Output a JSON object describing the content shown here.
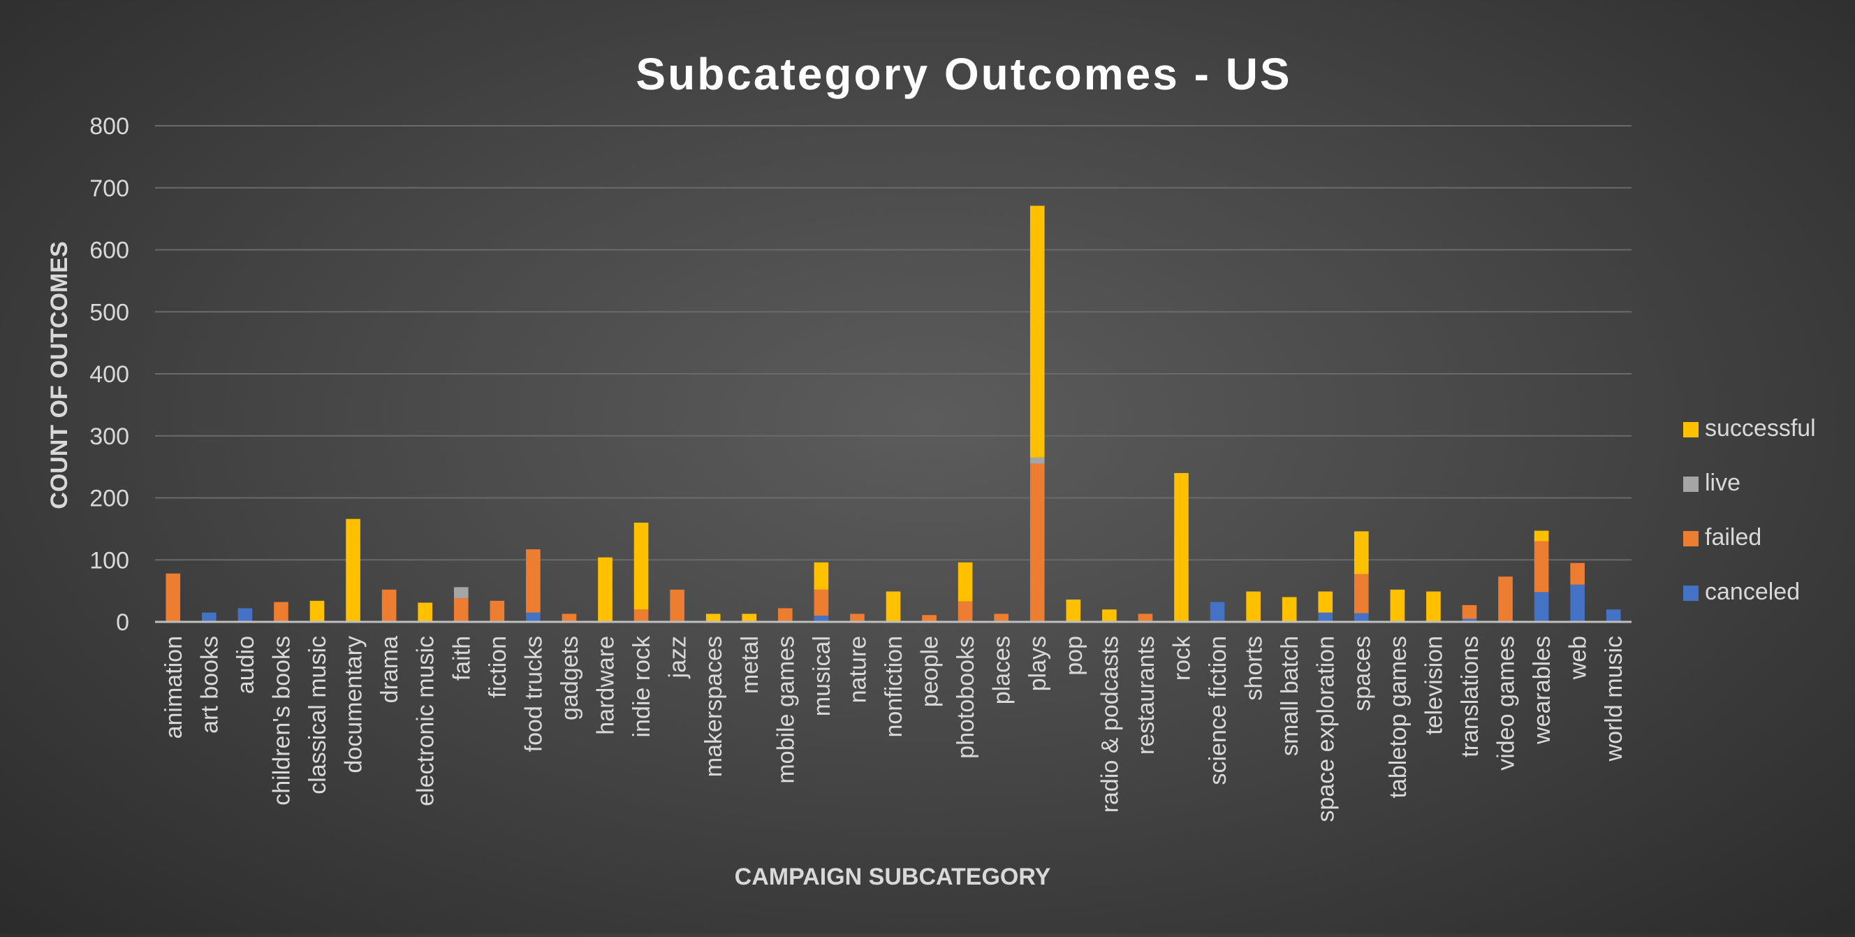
{
  "chart_data": {
    "type": "bar",
    "stacked": true,
    "title": "Subcategory Outcomes - US",
    "xlabel": "CAMPAIGN SUBCATEGORY",
    "ylabel": "COUNT OF OUTCOMES",
    "ylim": [
      0,
      800
    ],
    "yticks": [
      0,
      100,
      200,
      300,
      400,
      500,
      600,
      700,
      800
    ],
    "grid": true,
    "legend_position": "right",
    "categories": [
      "animation",
      "art books",
      "audio",
      "children's books",
      "classical music",
      "documentary",
      "drama",
      "electronic music",
      "faith",
      "fiction",
      "food trucks",
      "gadgets",
      "hardware",
      "indie rock",
      "jazz",
      "makerspaces",
      "metal",
      "mobile games",
      "musical",
      "nature",
      "nonfiction",
      "people",
      "photobooks",
      "places",
      "plays",
      "pop",
      "radio & podcasts",
      "restaurants",
      "rock",
      "science fiction",
      "shorts",
      "small batch",
      "space exploration",
      "spaces",
      "tabletop games",
      "television",
      "translations",
      "video games",
      "wearables",
      "web",
      "world music"
    ],
    "series": [
      {
        "name": "canceled",
        "color": "#4472c4",
        "values": [
          0,
          15,
          22,
          0,
          0,
          0,
          0,
          0,
          0,
          0,
          15,
          0,
          0,
          0,
          0,
          0,
          0,
          0,
          10,
          0,
          0,
          0,
          0,
          0,
          0,
          0,
          0,
          0,
          0,
          32,
          0,
          0,
          15,
          14,
          0,
          0,
          5,
          0,
          48,
          60,
          20
        ]
      },
      {
        "name": "failed",
        "color": "#ed7d31",
        "values": [
          78,
          0,
          0,
          32,
          0,
          0,
          52,
          0,
          38,
          34,
          102,
          13,
          0,
          20,
          52,
          0,
          0,
          22,
          42,
          13,
          0,
          11,
          33,
          13,
          255,
          0,
          0,
          13,
          0,
          0,
          0,
          0,
          0,
          63,
          0,
          0,
          22,
          73,
          82,
          35,
          0
        ]
      },
      {
        "name": "live",
        "color": "#a5a5a5",
        "values": [
          0,
          0,
          0,
          0,
          0,
          0,
          0,
          0,
          18,
          0,
          0,
          0,
          0,
          0,
          0,
          0,
          0,
          0,
          0,
          0,
          0,
          0,
          0,
          0,
          10,
          0,
          0,
          0,
          0,
          0,
          0,
          0,
          0,
          0,
          0,
          0,
          0,
          0,
          0,
          0,
          0
        ]
      },
      {
        "name": "successful",
        "color": "#ffc000",
        "values": [
          0,
          0,
          0,
          0,
          34,
          166,
          0,
          31,
          0,
          0,
          0,
          0,
          104,
          140,
          0,
          13,
          13,
          0,
          44,
          0,
          49,
          0,
          63,
          0,
          406,
          36,
          20,
          0,
          240,
          0,
          49,
          40,
          34,
          69,
          52,
          49,
          0,
          0,
          17,
          0,
          0
        ]
      }
    ]
  }
}
